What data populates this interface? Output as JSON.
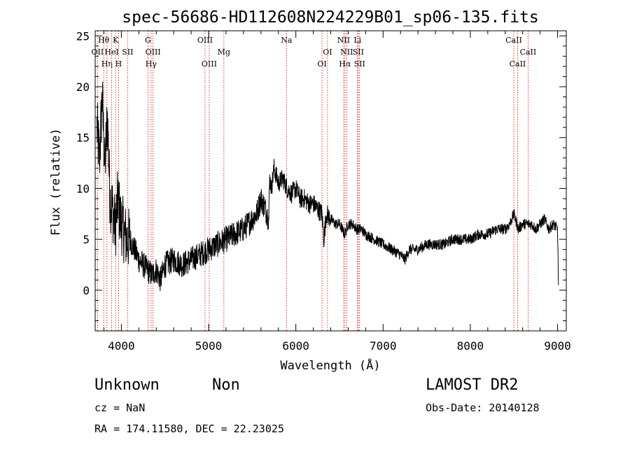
{
  "chart_data": {
    "type": "line",
    "title": "spec-56686-HD112608N224229B01_sp06-135.fits",
    "xlabel": "Wavelength (Å)",
    "ylabel": "Flux (relative)",
    "xlim": [
      3700,
      9100
    ],
    "ylim": [
      -4,
      25.5
    ],
    "xticks": [
      4000,
      5000,
      6000,
      7000,
      8000,
      9000
    ],
    "yticks": [
      0,
      5,
      10,
      15,
      20,
      25
    ],
    "series": [
      {
        "x": [
          3720,
          3750,
          3780,
          3810,
          3840,
          3870,
          3900,
          3930,
          3960,
          3990,
          4020,
          4060,
          4100,
          4150,
          4200,
          4250,
          4300,
          4350,
          4400,
          4450,
          4500,
          4600,
          4700,
          4800,
          4900,
          5000,
          5100,
          5200,
          5300,
          5400,
          5500,
          5550,
          5600,
          5650,
          5690,
          5700,
          5720,
          5750,
          5800,
          5850,
          5900,
          5950,
          6000,
          6050,
          6100,
          6150,
          6200,
          6250,
          6300,
          6320,
          6350,
          6400,
          6450,
          6500,
          6560,
          6600,
          6650,
          6700,
          6750,
          6800,
          6900,
          7000,
          7100,
          7200,
          7250,
          7300,
          7400,
          7500,
          7600,
          7700,
          7800,
          7900,
          8000,
          8100,
          8200,
          8300,
          8400,
          8450,
          8500,
          8550,
          8600,
          8650,
          8700,
          8750,
          8800,
          8850,
          8900,
          8950,
          9000,
          9010
        ],
        "y": [
          16,
          13,
          19,
          12,
          17,
          9,
          8,
          6,
          9,
          7,
          6,
          5,
          5,
          4,
          3,
          2.5,
          2,
          1.5,
          2,
          1,
          2.5,
          3,
          2.5,
          3,
          3.5,
          4,
          4.5,
          5,
          5.5,
          6,
          7,
          7.5,
          9,
          8,
          7,
          11,
          10,
          12,
          10.5,
          11,
          10,
          9.5,
          10,
          9,
          9,
          8.5,
          8.5,
          8,
          7.5,
          5,
          7.5,
          7,
          6.5,
          6.5,
          5.5,
          6.5,
          6.5,
          6,
          6,
          5.5,
          5,
          4.5,
          4,
          3.5,
          3,
          4,
          4,
          4.5,
          4.5,
          4.5,
          5,
          5,
          5,
          5.5,
          5.5,
          6,
          6,
          6.5,
          7.5,
          6,
          6.5,
          6.5,
          6.5,
          6,
          6.5,
          7,
          6,
          6.5,
          6,
          0.5
        ]
      }
    ],
    "line_markers": [
      {
        "name": "OII",
        "wl": 3727,
        "row": 2
      },
      {
        "name": "Hθ",
        "wl": 3798,
        "row": 0
      },
      {
        "name": "Hη",
        "wl": 3835,
        "row": 3
      },
      {
        "name": "HeI",
        "wl": 3889,
        "row": 2
      },
      {
        "name": "K",
        "wl": 3934,
        "row": 0
      },
      {
        "name": "H",
        "wl": 3968,
        "row": 3
      },
      {
        "name": "SII",
        "wl": 4072,
        "row": 2
      },
      {
        "name": "G",
        "wl": 4305,
        "row": 0
      },
      {
        "name": "Hγ",
        "wl": 4341,
        "row": 3
      },
      {
        "name": "OIII",
        "wl": 4363,
        "row": 2
      },
      {
        "name": "OIII",
        "wl": 4959,
        "row": 1
      },
      {
        "name": "OIII",
        "wl": 5007,
        "row": 3
      },
      {
        "name": "Mg",
        "wl": 5175,
        "row": 2
      },
      {
        "name": "Na",
        "wl": 5893,
        "row": 1
      },
      {
        "name": "OI",
        "wl": 6300,
        "row": 3
      },
      {
        "name": "OI",
        "wl": 6363,
        "row": 2
      },
      {
        "name": "NII",
        "wl": 6548,
        "row": 0
      },
      {
        "name": "NII",
        "wl": 6583,
        "row": 2
      },
      {
        "name": "Hα",
        "wl": 6563,
        "row": 3
      },
      {
        "name": "Li",
        "wl": 6707,
        "row": 0
      },
      {
        "name": "SII",
        "wl": 6716,
        "row": 2
      },
      {
        "name": "SII",
        "wl": 6731,
        "row": 3
      },
      {
        "name": "CaII",
        "wl": 8498,
        "row": 1
      },
      {
        "name": "CaII",
        "wl": 8542,
        "row": 3
      },
      {
        "name": "CaII",
        "wl": 8662,
        "row": 2
      }
    ]
  },
  "info": {
    "class": "Unknown",
    "subclass": "Non",
    "survey": "LAMOST DR2",
    "cz": "cz = NaN",
    "obs_date": "Obs-Date: 20140128",
    "coords": "RA = 174.11580, DEC =  22.23025"
  },
  "colors": {
    "axis": "#000000",
    "spectrum": "#000000",
    "marker": "#cc0000"
  }
}
